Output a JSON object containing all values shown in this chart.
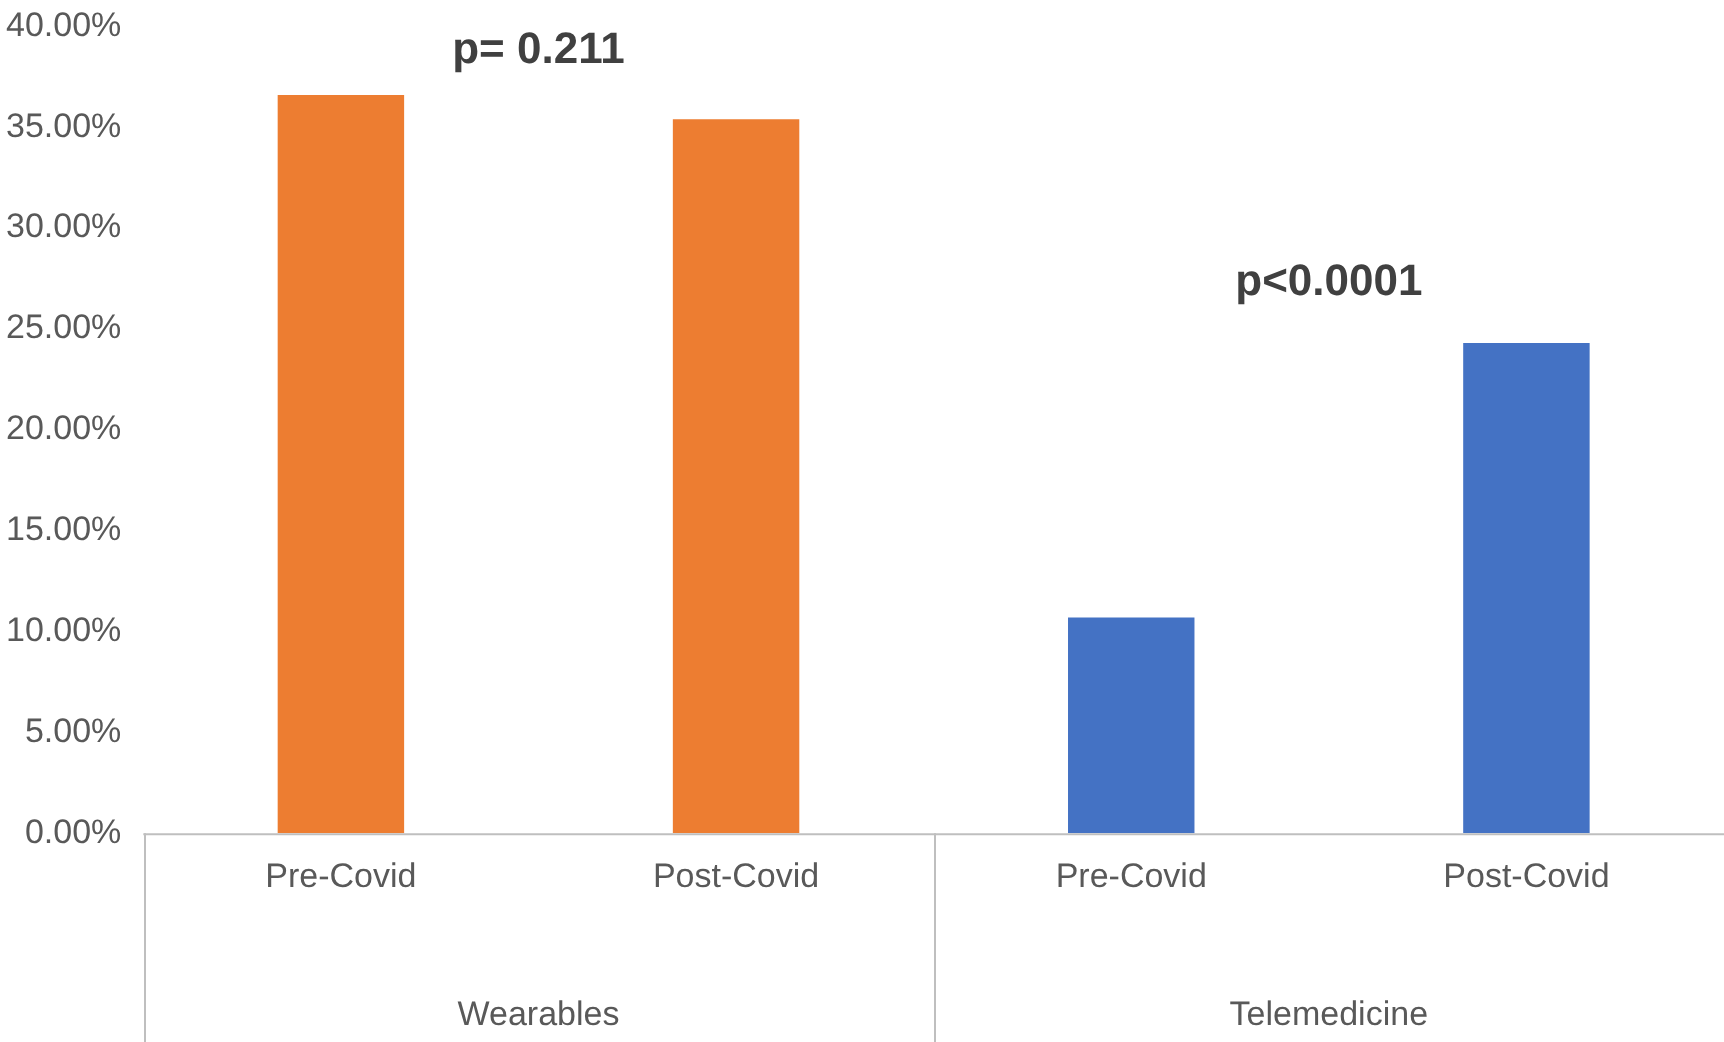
{
  "chart_data": {
    "type": "bar",
    "categories": [
      "Pre-Covid",
      "Post-Covid",
      "Pre-Covid",
      "Post-Covid"
    ],
    "values": [
      36.6,
      35.4,
      10.7,
      24.3
    ],
    "colors": [
      "#ed7d31",
      "#ed7d31",
      "#4472c4",
      "#4472c4"
    ],
    "ylim": [
      0,
      40
    ],
    "yticks": [
      {
        "value": 0,
        "label": "0.00%"
      },
      {
        "value": 5,
        "label": "5.00%"
      },
      {
        "value": 10,
        "label": "10.00%"
      },
      {
        "value": 15,
        "label": "15.00%"
      },
      {
        "value": 20,
        "label": "20.00%"
      },
      {
        "value": 25,
        "label": "25.00%"
      },
      {
        "value": 30,
        "label": "30.00%"
      },
      {
        "value": 35,
        "label": "35.00%"
      },
      {
        "value": 40,
        "label": "40.00%"
      }
    ],
    "grid": false,
    "annotations": [
      "p= 0.211",
      "p<0.0001",
      "Wearables",
      "Telemedicine"
    ]
  }
}
